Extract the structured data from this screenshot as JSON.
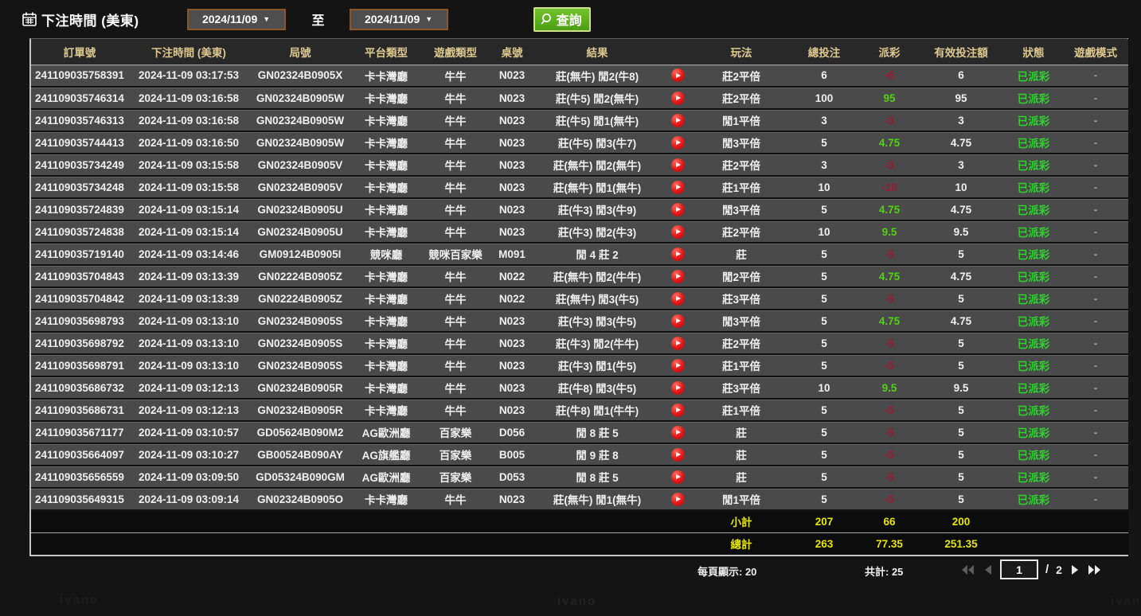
{
  "topbar": {
    "title": "下注時間 (美東)",
    "date_from": "2024/11/09",
    "to_label": "至",
    "date_to": "2024/11/09",
    "search_label": "查詢"
  },
  "colors": {
    "header_gold": "#ddc88f",
    "win_green": "#54d112",
    "loss_red": "#9c1b32",
    "status_green": "#2dd22d",
    "totals_yellow": "#e6e600",
    "button_green": "#5eb31f",
    "date_border_brown": "#8a5527",
    "play_icon_red": "#e01616"
  },
  "table": {
    "headers": [
      "訂單號",
      "下注時間 (美東)",
      "局號",
      "平台類型",
      "遊戲類型",
      "桌號",
      "結果",
      "",
      "玩法",
      "總投注",
      "派彩",
      "有效投注額",
      "狀態",
      "遊戲模式"
    ],
    "rows": [
      {
        "order": "241109035758391",
        "time": "2024-11-09 03:17:53",
        "round": "GN02324B0905X",
        "platform": "卡卡灣廳",
        "game": "牛牛",
        "tableNo": "N023",
        "result": "莊(無牛) 閒2(牛8)",
        "play": "莊2平倍",
        "bet": "6",
        "payout": "-6",
        "payoutClass": "neg",
        "valid": "6",
        "status": "已派彩",
        "mode": "-"
      },
      {
        "order": "241109035746314",
        "time": "2024-11-09 03:16:58",
        "round": "GN02324B0905W",
        "platform": "卡卡灣廳",
        "game": "牛牛",
        "tableNo": "N023",
        "result": "莊(牛5) 閒2(無牛)",
        "play": "莊2平倍",
        "bet": "100",
        "payout": "95",
        "payoutClass": "pos",
        "valid": "95",
        "status": "已派彩",
        "mode": "-"
      },
      {
        "order": "241109035746313",
        "time": "2024-11-09 03:16:58",
        "round": "GN02324B0905W",
        "platform": "卡卡灣廳",
        "game": "牛牛",
        "tableNo": "N023",
        "result": "莊(牛5) 閒1(無牛)",
        "play": "閒1平倍",
        "bet": "3",
        "payout": "-3",
        "payoutClass": "neg",
        "valid": "3",
        "status": "已派彩",
        "mode": "-"
      },
      {
        "order": "241109035744413",
        "time": "2024-11-09 03:16:50",
        "round": "GN02324B0905W",
        "platform": "卡卡灣廳",
        "game": "牛牛",
        "tableNo": "N023",
        "result": "莊(牛5) 閒3(牛7)",
        "play": "閒3平倍",
        "bet": "5",
        "payout": "4.75",
        "payoutClass": "pos",
        "valid": "4.75",
        "status": "已派彩",
        "mode": "-"
      },
      {
        "order": "241109035734249",
        "time": "2024-11-09 03:15:58",
        "round": "GN02324B0905V",
        "platform": "卡卡灣廳",
        "game": "牛牛",
        "tableNo": "N023",
        "result": "莊(無牛) 閒2(無牛)",
        "play": "莊2平倍",
        "bet": "3",
        "payout": "-3",
        "payoutClass": "neg",
        "valid": "3",
        "status": "已派彩",
        "mode": "-"
      },
      {
        "order": "241109035734248",
        "time": "2024-11-09 03:15:58",
        "round": "GN02324B0905V",
        "platform": "卡卡灣廳",
        "game": "牛牛",
        "tableNo": "N023",
        "result": "莊(無牛) 閒1(無牛)",
        "play": "莊1平倍",
        "bet": "10",
        "payout": "-10",
        "payoutClass": "neg",
        "valid": "10",
        "status": "已派彩",
        "mode": "-"
      },
      {
        "order": "241109035724839",
        "time": "2024-11-09 03:15:14",
        "round": "GN02324B0905U",
        "platform": "卡卡灣廳",
        "game": "牛牛",
        "tableNo": "N023",
        "result": "莊(牛3) 閒3(牛9)",
        "play": "閒3平倍",
        "bet": "5",
        "payout": "4.75",
        "payoutClass": "pos",
        "valid": "4.75",
        "status": "已派彩",
        "mode": "-"
      },
      {
        "order": "241109035724838",
        "time": "2024-11-09 03:15:14",
        "round": "GN02324B0905U",
        "platform": "卡卡灣廳",
        "game": "牛牛",
        "tableNo": "N023",
        "result": "莊(牛3) 閒2(牛3)",
        "play": "莊2平倍",
        "bet": "10",
        "payout": "9.5",
        "payoutClass": "pos",
        "valid": "9.5",
        "status": "已派彩",
        "mode": "-"
      },
      {
        "order": "241109035719140",
        "time": "2024-11-09 03:14:46",
        "round": "GM09124B0905I",
        "platform": "競咪廳",
        "game": "競咪百家樂",
        "tableNo": "M091",
        "result": "閒 4 莊 2",
        "play": "莊",
        "bet": "5",
        "payout": "-5",
        "payoutClass": "neg",
        "valid": "5",
        "status": "已派彩",
        "mode": "-"
      },
      {
        "order": "241109035704843",
        "time": "2024-11-09 03:13:39",
        "round": "GN02224B0905Z",
        "platform": "卡卡灣廳",
        "game": "牛牛",
        "tableNo": "N022",
        "result": "莊(無牛) 閒2(牛牛)",
        "play": "閒2平倍",
        "bet": "5",
        "payout": "4.75",
        "payoutClass": "pos",
        "valid": "4.75",
        "status": "已派彩",
        "mode": "-"
      },
      {
        "order": "241109035704842",
        "time": "2024-11-09 03:13:39",
        "round": "GN02224B0905Z",
        "platform": "卡卡灣廳",
        "game": "牛牛",
        "tableNo": "N022",
        "result": "莊(無牛) 閒3(牛5)",
        "play": "莊3平倍",
        "bet": "5",
        "payout": "-5",
        "payoutClass": "neg",
        "valid": "5",
        "status": "已派彩",
        "mode": "-"
      },
      {
        "order": "241109035698793",
        "time": "2024-11-09 03:13:10",
        "round": "GN02324B0905S",
        "platform": "卡卡灣廳",
        "game": "牛牛",
        "tableNo": "N023",
        "result": "莊(牛3) 閒3(牛5)",
        "play": "閒3平倍",
        "bet": "5",
        "payout": "4.75",
        "payoutClass": "pos",
        "valid": "4.75",
        "status": "已派彩",
        "mode": "-"
      },
      {
        "order": "241109035698792",
        "time": "2024-11-09 03:13:10",
        "round": "GN02324B0905S",
        "platform": "卡卡灣廳",
        "game": "牛牛",
        "tableNo": "N023",
        "result": "莊(牛3) 閒2(牛牛)",
        "play": "莊2平倍",
        "bet": "5",
        "payout": "-5",
        "payoutClass": "neg",
        "valid": "5",
        "status": "已派彩",
        "mode": "-"
      },
      {
        "order": "241109035698791",
        "time": "2024-11-09 03:13:10",
        "round": "GN02324B0905S",
        "platform": "卡卡灣廳",
        "game": "牛牛",
        "tableNo": "N023",
        "result": "莊(牛3) 閒1(牛5)",
        "play": "莊1平倍",
        "bet": "5",
        "payout": "-5",
        "payoutClass": "neg",
        "valid": "5",
        "status": "已派彩",
        "mode": "-"
      },
      {
        "order": "241109035686732",
        "time": "2024-11-09 03:12:13",
        "round": "GN02324B0905R",
        "platform": "卡卡灣廳",
        "game": "牛牛",
        "tableNo": "N023",
        "result": "莊(牛8) 閒3(牛5)",
        "play": "莊3平倍",
        "bet": "10",
        "payout": "9.5",
        "payoutClass": "pos",
        "valid": "9.5",
        "status": "已派彩",
        "mode": "-"
      },
      {
        "order": "241109035686731",
        "time": "2024-11-09 03:12:13",
        "round": "GN02324B0905R",
        "platform": "卡卡灣廳",
        "game": "牛牛",
        "tableNo": "N023",
        "result": "莊(牛8) 閒1(牛牛)",
        "play": "莊1平倍",
        "bet": "5",
        "payout": "-5",
        "payoutClass": "neg",
        "valid": "5",
        "status": "已派彩",
        "mode": "-"
      },
      {
        "order": "241109035671177",
        "time": "2024-11-09 03:10:57",
        "round": "GD05624B090M2",
        "platform": "AG歐洲廳",
        "game": "百家樂",
        "tableNo": "D056",
        "result": "閒 8 莊 5",
        "play": "莊",
        "bet": "5",
        "payout": "-5",
        "payoutClass": "neg",
        "valid": "5",
        "status": "已派彩",
        "mode": "-"
      },
      {
        "order": "241109035664097",
        "time": "2024-11-09 03:10:27",
        "round": "GB00524B090AY",
        "platform": "AG旗艦廳",
        "game": "百家樂",
        "tableNo": "B005",
        "result": "閒 9 莊 8",
        "play": "莊",
        "bet": "5",
        "payout": "-5",
        "payoutClass": "neg",
        "valid": "5",
        "status": "已派彩",
        "mode": "-"
      },
      {
        "order": "241109035656559",
        "time": "2024-11-09 03:09:50",
        "round": "GD05324B090GM",
        "platform": "AG歐洲廳",
        "game": "百家樂",
        "tableNo": "D053",
        "result": "閒 8 莊 5",
        "play": "莊",
        "bet": "5",
        "payout": "-5",
        "payoutClass": "neg",
        "valid": "5",
        "status": "已派彩",
        "mode": "-"
      },
      {
        "order": "241109035649315",
        "time": "2024-11-09 03:09:14",
        "round": "GN02324B0905O",
        "platform": "卡卡灣廳",
        "game": "牛牛",
        "tableNo": "N023",
        "result": "莊(無牛) 閒1(無牛)",
        "play": "閒1平倍",
        "bet": "5",
        "payout": "-5",
        "payoutClass": "neg",
        "valid": "5",
        "status": "已派彩",
        "mode": "-"
      }
    ],
    "subtotal": {
      "label": "小計",
      "bet": "207",
      "payout": "66",
      "valid": "200"
    },
    "total": {
      "label": "總計",
      "bet": "263",
      "payout": "77.35",
      "valid": "251.35"
    }
  },
  "footer": {
    "per_page": "每頁顯示: 20",
    "total_count": "共計: 25",
    "page": "1",
    "page_sep": "/",
    "total_pages": "2"
  },
  "watermark": "ivano"
}
